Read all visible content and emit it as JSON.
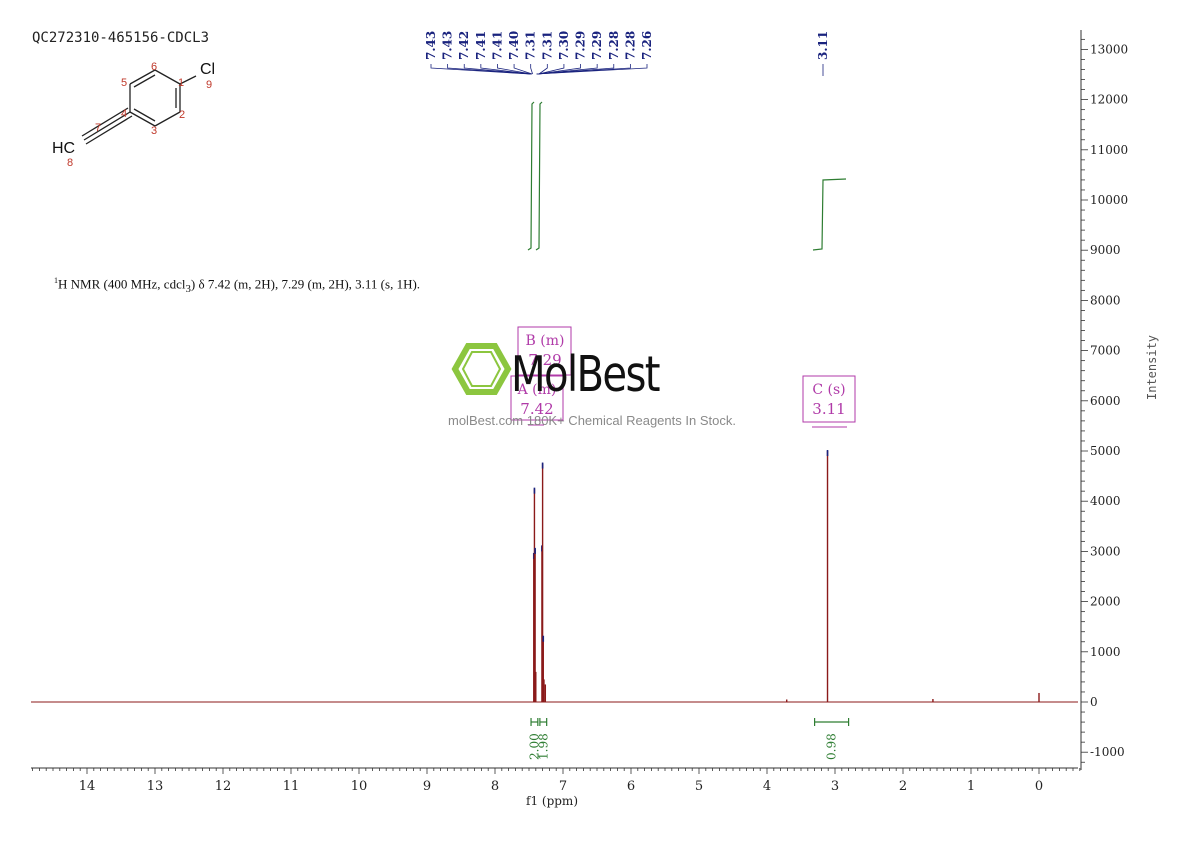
{
  "sample_id": "QC272310-465156-CDCL3",
  "molecule": {
    "atoms": [
      {
        "symbol": "Cl",
        "number": "9"
      },
      {
        "symbol": "HC",
        "number": "8"
      }
    ],
    "ring_numbers": [
      "1",
      "2",
      "3",
      "4",
      "5",
      "6",
      "7"
    ]
  },
  "summary": {
    "nucleus": "1",
    "text": "H NMR (400 MHz, cdcl",
    "sub": "3",
    "rest": ") δ 7.42 (m, 2H), 7.29 (m, 2H), 3.11 (s, 1H)."
  },
  "watermark": {
    "logo": "MolBest",
    "tagline": "molBest.com 180K+ Chemical Reagents In Stock."
  },
  "colors": {
    "spectrum": "#8b1a1a",
    "peak_labels": "#1a237e",
    "integral": "#2e7d32",
    "multiplet": "#b03aa8",
    "logo_green": "#8cc63f"
  },
  "chart_data": {
    "type": "line",
    "title": "",
    "xlabel": "f1 (ppm)",
    "ylabel": "Intensity",
    "xlim": [
      14.8,
      -0.6
    ],
    "ylim": [
      -1300,
      13400
    ],
    "x_reversed": true,
    "x_ticks": [
      "14",
      "13",
      "12",
      "11",
      "10",
      "9",
      "8",
      "7",
      "6",
      "5",
      "4",
      "3",
      "2",
      "1",
      "0"
    ],
    "y_ticks": [
      "13000",
      "12000",
      "11000",
      "10000",
      "9000",
      "8000",
      "7000",
      "6000",
      "5000",
      "4000",
      "3000",
      "2000",
      "1000",
      "0",
      "-1000"
    ],
    "grid": false,
    "series": [
      {
        "peaks": [
          {
            "ppm": 7.43,
            "height": 2950
          },
          {
            "ppm": 7.42,
            "height": 4250
          },
          {
            "ppm": 7.41,
            "height": 3050
          },
          {
            "ppm": 7.4,
            "height": 600
          },
          {
            "ppm": 7.31,
            "height": 3100
          },
          {
            "ppm": 7.3,
            "height": 4750
          },
          {
            "ppm": 7.29,
            "height": 1300
          },
          {
            "ppm": 7.28,
            "height": 450
          },
          {
            "ppm": 7.26,
            "height": 350
          },
          {
            "ppm": 3.11,
            "height": 5000
          },
          {
            "ppm": 3.71,
            "height": 50
          },
          {
            "ppm": 1.56,
            "height": 60
          },
          {
            "ppm": 0.0,
            "height": 180
          }
        ]
      }
    ],
    "peak_labels_left": [
      "7.43",
      "7.43",
      "7.42",
      "7.41",
      "7.41",
      "7.40",
      "7.31",
      "7.31",
      "7.30",
      "7.29",
      "7.29",
      "7.28",
      "7.28",
      "7.26"
    ],
    "peak_label_right": "3.11",
    "integrals": [
      {
        "label": "2.00",
        "from": 7.47,
        "to": 7.37
      },
      {
        "label": "1.98",
        "from": 7.34,
        "to": 7.24
      },
      {
        "label": "0.98",
        "from": 3.3,
        "to": 2.8
      }
    ],
    "multiplets": [
      {
        "label": "B (m)",
        "shift": "7.29"
      },
      {
        "label": "A (m)",
        "shift": "7.42"
      },
      {
        "label": "C (s)",
        "shift": "3.11"
      }
    ]
  }
}
